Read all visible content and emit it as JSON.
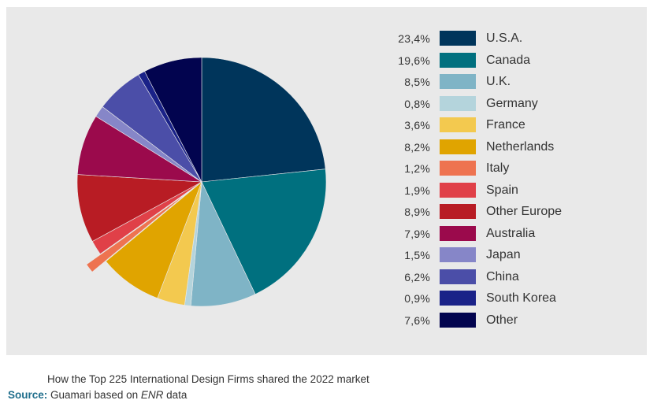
{
  "chart_data": {
    "type": "pie",
    "title": "How the Top 225 International Design Firms shared the 2022 market",
    "start_angle_deg": 0,
    "direction": "clockwise",
    "slices": [
      {
        "label": "U.S.A.",
        "value": 23.4,
        "value_text": "23,4%",
        "color": "#00355b"
      },
      {
        "label": "Canada",
        "value": 19.6,
        "value_text": "19,6%",
        "color": "#00707f"
      },
      {
        "label": "U.K.",
        "value": 8.5,
        "value_text": "8,5%",
        "color": "#7fb4c6"
      },
      {
        "label": "Germany",
        "value": 0.8,
        "value_text": "0,8%",
        "color": "#b4d4dc"
      },
      {
        "label": "France",
        "value": 3.6,
        "value_text": "3,6%",
        "color": "#f3c94f"
      },
      {
        "label": "Netherlands",
        "value": 8.2,
        "value_text": "8,2%",
        "color": "#e0a400"
      },
      {
        "label": "Italy",
        "value": 1.2,
        "value_text": "1,2%",
        "color": "#ee7350",
        "exploded": true
      },
      {
        "label": "Spain",
        "value": 1.9,
        "value_text": "1,9%",
        "color": "#e04048"
      },
      {
        "label": "Other Europe",
        "value": 8.9,
        "value_text": "8,9%",
        "color": "#b81c24"
      },
      {
        "label": "Australia",
        "value": 7.9,
        "value_text": "7,9%",
        "color": "#9b0a4c"
      },
      {
        "label": "Japan",
        "value": 1.5,
        "value_text": "1,5%",
        "color": "#8686c8"
      },
      {
        "label": "China",
        "value": 6.2,
        "value_text": "6,2%",
        "color": "#4b4ea8"
      },
      {
        "label": "South Korea",
        "value": 0.9,
        "value_text": "0,9%",
        "color": "#1a2288"
      },
      {
        "label": "Other",
        "value": 7.6,
        "value_text": "7,6%",
        "color": "#02044f"
      }
    ]
  },
  "caption": "How the Top 225 International Design Firms shared the 2022 market",
  "source": {
    "label": "Source:",
    "text_before": "Guamari based on",
    "emphasis": "ENR",
    "text_after": "data"
  }
}
